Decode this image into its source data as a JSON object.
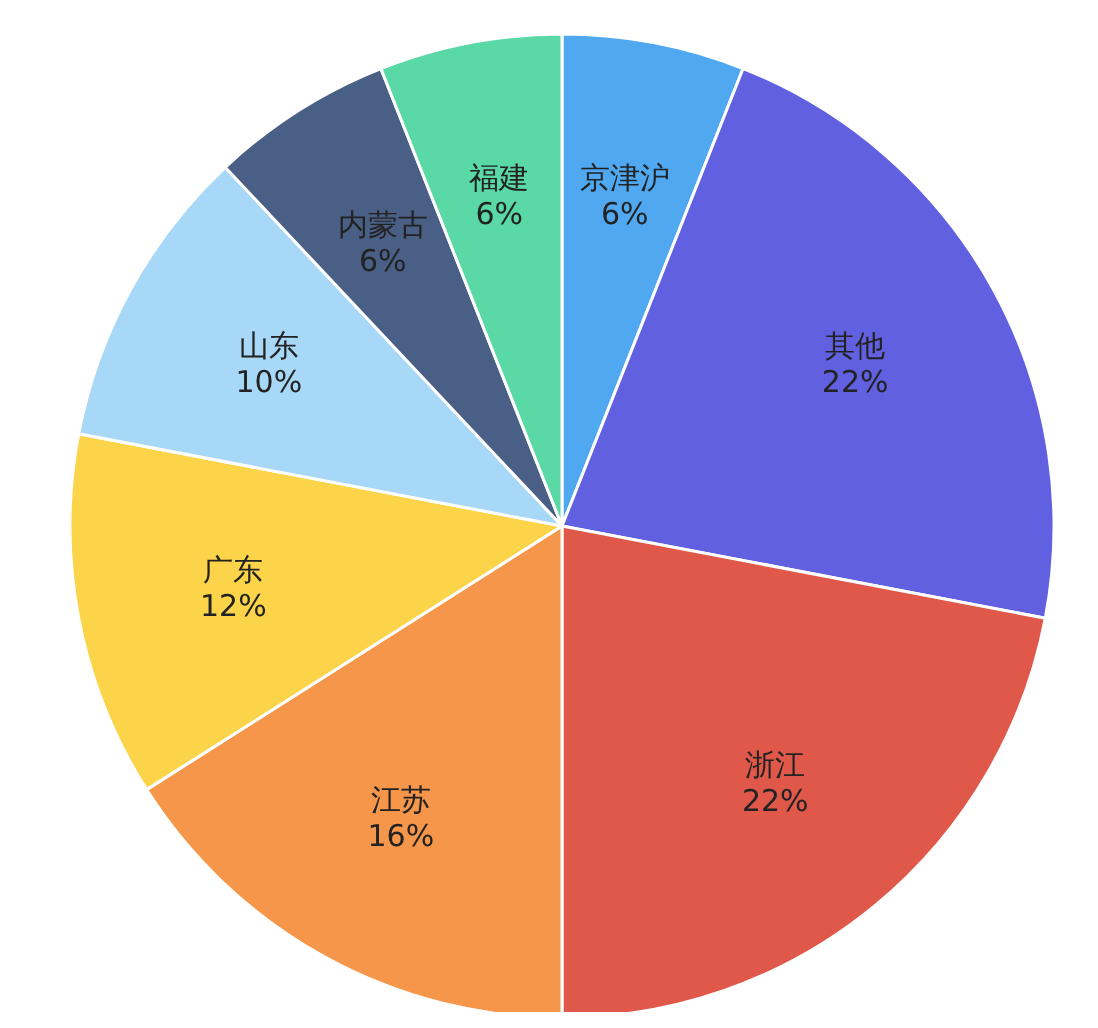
{
  "chart_data": {
    "type": "pie",
    "categories": [
      "京津沪",
      "其他",
      "浙江",
      "江苏",
      "广东",
      "山东",
      "内蒙古",
      "福建"
    ],
    "values": [
      6,
      22,
      22,
      16,
      12,
      10,
      6,
      6
    ],
    "value_labels": [
      "6%",
      "22%",
      "22%",
      "16%",
      "12%",
      "10%",
      "6%",
      "6%"
    ],
    "colors": [
      "#4fa8f0",
      "#6060e0",
      "#e0584a",
      "#f5964a",
      "#fbd44a",
      "#a8d8f8",
      "#4a5f85",
      "#5ad8a6"
    ],
    "legend": false
  }
}
